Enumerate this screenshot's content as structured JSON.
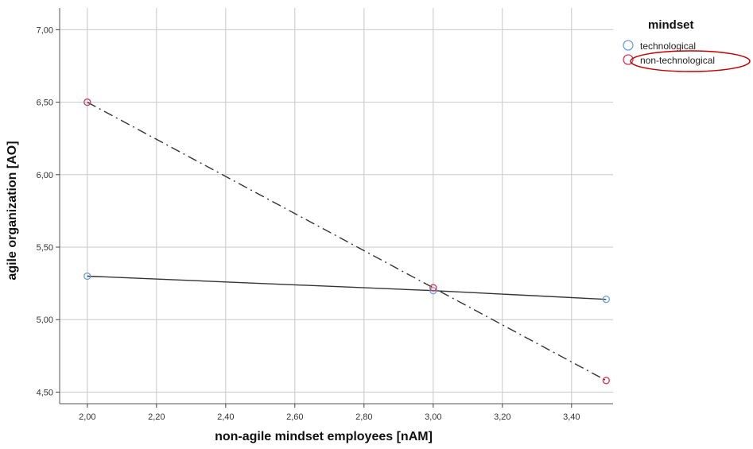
{
  "chart_data": {
    "type": "scatter",
    "xlabel": "non-agile mindset employees [nAM]",
    "ylabel": "agile organization [AO]",
    "xlim": [
      1.92,
      3.52
    ],
    "ylim": [
      4.42,
      7.15
    ],
    "x_ticks": [
      "2,00",
      "2,20",
      "2,40",
      "2,60",
      "2,80",
      "3,00",
      "3,20",
      "3,40"
    ],
    "x_tick_values": [
      2.0,
      2.2,
      2.4,
      2.6,
      2.8,
      3.0,
      3.2,
      3.4
    ],
    "y_ticks": [
      "4,50",
      "5,00",
      "5,50",
      "6,00",
      "6,50",
      "7,00"
    ],
    "y_tick_values": [
      4.5,
      5.0,
      5.5,
      6.0,
      6.5,
      7.0
    ],
    "grid": true,
    "legend": {
      "title": "mindset",
      "placement": "top-right",
      "entries": [
        "technological",
        "non-technological"
      ]
    },
    "series": [
      {
        "name": "technological",
        "color": "#6a9fd8",
        "line_style": "solid",
        "points": [
          {
            "x": 2.0,
            "y": 5.3
          },
          {
            "x": 3.0,
            "y": 5.2
          },
          {
            "x": 3.5,
            "y": 5.14
          }
        ]
      },
      {
        "name": "non-technological",
        "color": "#d43a5c",
        "line_style": "dash-dot",
        "points": [
          {
            "x": 2.0,
            "y": 6.5
          },
          {
            "x": 3.0,
            "y": 5.22
          },
          {
            "x": 3.5,
            "y": 4.58
          }
        ]
      }
    ],
    "annotations": [
      {
        "type": "ellipse-highlight",
        "target": "legend.non-technological",
        "color": "#c00000"
      }
    ]
  }
}
